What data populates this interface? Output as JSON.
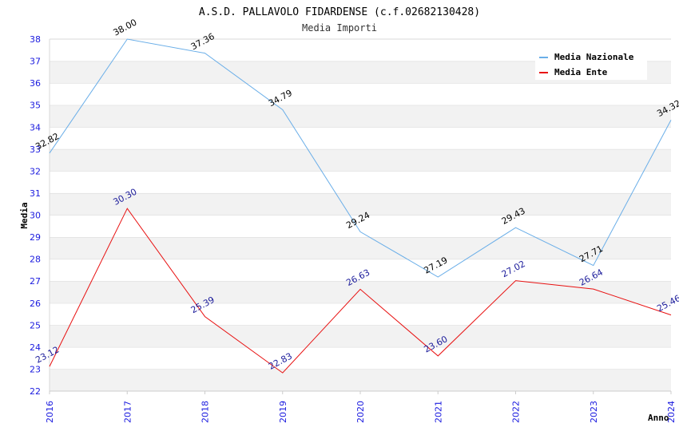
{
  "title": "A.S.D. PALLAVOLO FIDARDENSE (c.f.02682130428)",
  "subtitle": "Media Importi",
  "chart_data": {
    "type": "line",
    "title": "A.S.D. PALLAVOLO FIDARDENSE (c.f.02682130428)",
    "subtitle": "Media Importi",
    "xlabel": "Anno",
    "ylabel": "Media",
    "x": [
      "2016",
      "2017",
      "2018",
      "2019",
      "2020",
      "2021",
      "2022",
      "2023",
      "2024"
    ],
    "ylim": [
      22,
      38
    ],
    "yticks": [
      22,
      23,
      24,
      25,
      26,
      27,
      28,
      29,
      30,
      31,
      32,
      33,
      34,
      35,
      36,
      37,
      38
    ],
    "grid": "horizontal alternating bands",
    "legend": "top-right",
    "series": [
      {
        "name": "Media Nazionale",
        "color": "#6aaee8",
        "label_color": "#000000",
        "values": [
          32.82,
          38.0,
          37.36,
          34.79,
          29.24,
          27.19,
          29.43,
          27.71,
          34.32
        ],
        "labels": [
          "32.82",
          "38.00",
          "37.36",
          "34.79",
          "29.24",
          "27.19",
          "29.43",
          "27.71",
          "34.32"
        ]
      },
      {
        "name": "Media Ente",
        "color": "#e81010",
        "label_color": "#1a1a9a",
        "values": [
          23.12,
          30.3,
          25.39,
          22.83,
          26.63,
          23.6,
          27.02,
          26.64,
          25.46
        ],
        "labels": [
          "23.12",
          "30.30",
          "25.39",
          "22.83",
          "26.63",
          "23.60",
          "27.02",
          "26.64",
          "25.46"
        ]
      }
    ]
  }
}
